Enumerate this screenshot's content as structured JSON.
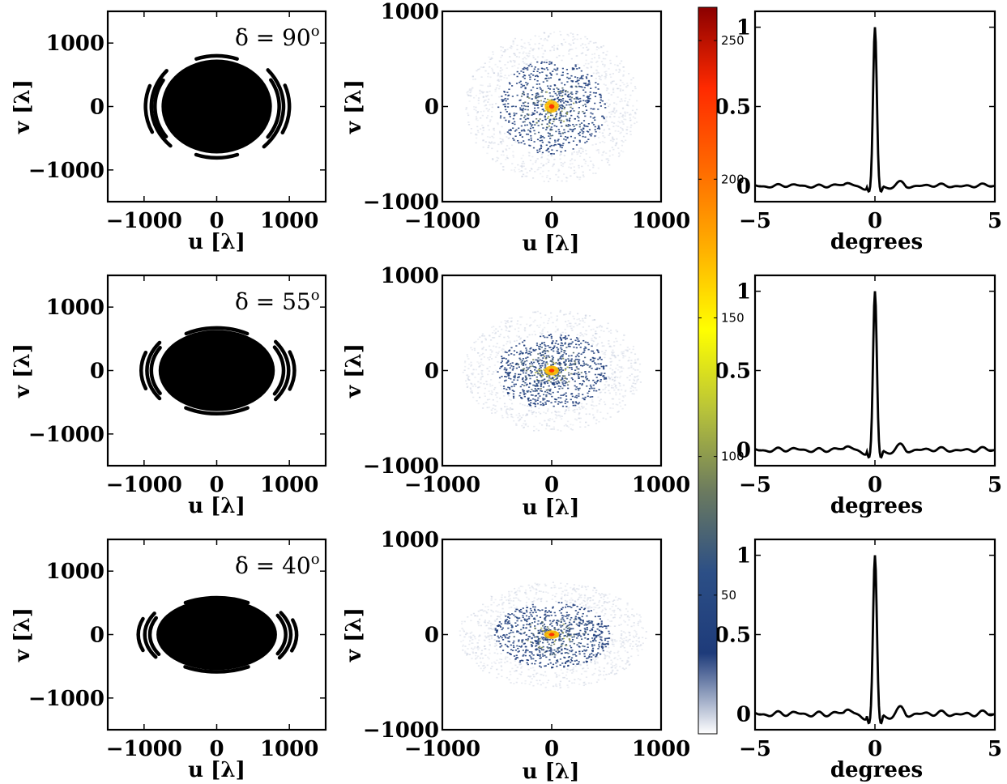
{
  "figure": {
    "rows": [
      {
        "declination_label": "δ = 90",
        "declination_sup": "o",
        "uv": {
          "rx": 760,
          "ry": 740,
          "arcs": [
            {
              "r": 850,
              "a0": 150,
              "a1": 215
            },
            {
              "r": 900,
              "a0": 140,
              "a1": 225
            },
            {
              "r": 980,
              "a0": 160,
              "a1": 205
            },
            {
              "r": 860,
              "a0": -35,
              "a1": 30
            },
            {
              "r": 920,
              "a0": -45,
              "a1": 40
            },
            {
              "r": 1000,
              "a0": -25,
              "a1": 20
            },
            {
              "r": 820,
              "a0": 70,
              "a1": 110
            },
            {
              "r": 830,
              "a0": 250,
              "a1": 290
            }
          ]
        },
        "density": {
          "rx": 800,
          "ry": 800
        },
        "beam": {
          "sidelobe": 1.0
        }
      },
      {
        "declination_label": "δ = 55",
        "declination_sup": "o",
        "uv": {
          "rx": 800,
          "ry": 640,
          "arcs": [
            {
              "r": 900,
              "a0": 150,
              "a1": 210
            },
            {
              "r": 960,
              "a0": 145,
              "a1": 215
            },
            {
              "r": 1040,
              "a0": 160,
              "a1": 200
            },
            {
              "r": 920,
              "a0": -30,
              "a1": 30
            },
            {
              "r": 990,
              "a0": -35,
              "a1": 35
            },
            {
              "r": 1070,
              "a0": -20,
              "a1": 20
            },
            {
              "r": 840,
              "a0": 60,
              "a1": 120
            },
            {
              "r": 850,
              "a0": 240,
              "a1": 300
            }
          ]
        },
        "density": {
          "rx": 820,
          "ry": 640
        },
        "beam": {
          "sidelobe": 1.3
        }
      },
      {
        "declination_label": "δ = 40",
        "declination_sup": "o",
        "uv": {
          "rx": 830,
          "ry": 560,
          "arcs": [
            {
              "r": 920,
              "a0": 155,
              "a1": 210
            },
            {
              "r": 990,
              "a0": 150,
              "a1": 212
            },
            {
              "r": 1080,
              "a0": 160,
              "a1": 200
            },
            {
              "r": 950,
              "a0": -28,
              "a1": 28
            },
            {
              "r": 1020,
              "a0": -32,
              "a1": 30
            },
            {
              "r": 1100,
              "a0": -20,
              "a1": 18
            },
            {
              "r": 860,
              "a0": 60,
              "a1": 120
            },
            {
              "r": 870,
              "a0": 240,
              "a1": 300
            }
          ]
        },
        "density": {
          "rx": 860,
          "ry": 560
        },
        "beam": {
          "sidelobe": 1.6
        }
      }
    ],
    "colorbar": {
      "ticks": [
        "250",
        "200",
        "150",
        "100",
        "50"
      ],
      "tick_values": [
        250,
        200,
        150,
        100,
        50
      ],
      "min": 0,
      "max": 262,
      "colors": [
        "#ffffff",
        "#1e3b7a",
        "#2c4f86",
        "#6b7a5f",
        "#b7c23a",
        "#ffff00",
        "#ffb000",
        "#ff6a00",
        "#ff2a00",
        "#8b0000"
      ]
    },
    "colors": {
      "uv": "#000000",
      "beam_line": "#000000"
    }
  },
  "chart_data": [
    {
      "type": "scatter",
      "panel": "uv coverage",
      "xlabel": "u [λ]",
      "ylabel": "v [λ]",
      "xticks": [
        "−1000",
        "0",
        "1000"
      ],
      "yticks": [
        "1000",
        "0",
        "−1000"
      ],
      "xlim": [
        -1500,
        1500
      ],
      "ylim": [
        -1500,
        1500
      ],
      "annotations": [
        "δ = 90°",
        "δ = 55°",
        "δ = 40°"
      ]
    },
    {
      "type": "heatmap",
      "panel": "uv density",
      "xlabel": "u [λ]",
      "ylabel": "v [λ]",
      "xticks": [
        "−1000",
        "0",
        "1000"
      ],
      "yticks": [
        "1000",
        "0",
        "−1000"
      ],
      "xlim": [
        -1000,
        1000
      ],
      "ylim": [
        -1000,
        1000
      ],
      "colorbar_ticks": [
        50,
        100,
        150,
        200,
        250
      ]
    },
    {
      "type": "line",
      "panel": "synthesized beam",
      "xlabel": "degrees",
      "ylabel": "",
      "xticks": [
        "−5",
        "0",
        "5"
      ],
      "yticks": [
        "1",
        "0.5",
        "0"
      ],
      "xlim": [
        -5,
        5
      ],
      "ylim": [
        -0.1,
        1.1
      ],
      "series": [
        {
          "x": [
            -5,
            -1,
            -0.3,
            -0.1,
            0,
            0.1,
            0.3,
            1,
            5
          ],
          "y": [
            0,
            0,
            -0.05,
            0.4,
            1.0,
            0.4,
            -0.05,
            0,
            0
          ]
        }
      ]
    }
  ]
}
